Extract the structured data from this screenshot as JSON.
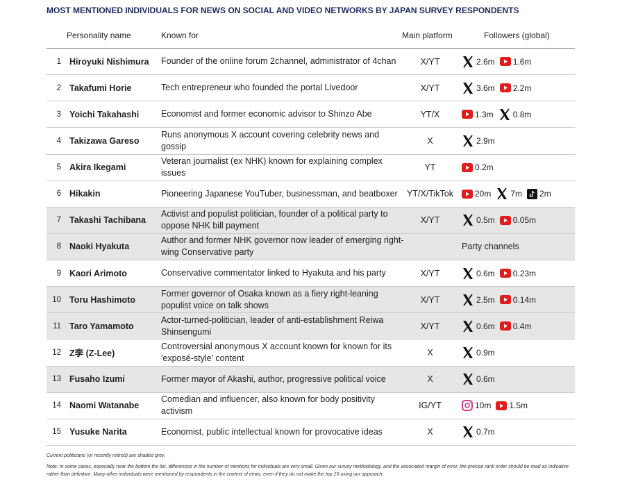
{
  "title": "MOST MENTIONED INDIVIDUALS FOR NEWS ON SOCIAL AND VIDEO NETWORKS BY JAPAN SURVEY RESPONDENTS",
  "table": {
    "headers": [
      "Personality name",
      "Known for",
      "Main platform",
      "Followers (global)"
    ],
    "rows": [
      {
        "rank": 1,
        "name": "Hiroyuki Nishimura",
        "known_for": "Founder of the online forum 2channel, administrator of 4chan",
        "platform": "X/YT",
        "shaded": false,
        "followers": [
          {
            "icon": "x",
            "value": "2.6m"
          },
          {
            "icon": "yt",
            "value": "1.6m"
          }
        ]
      },
      {
        "rank": 2,
        "name": "Takafumi Horie",
        "known_for": "Tech entrepreneur who founded the portal Livedoor",
        "platform": "X/YT",
        "shaded": false,
        "followers": [
          {
            "icon": "x",
            "value": "3.6m"
          },
          {
            "icon": "yt",
            "value": "2.2m"
          }
        ]
      },
      {
        "rank": 3,
        "name": "Yoichi Takahashi",
        "known_for": "Economist and former economic advisor to Shinzo Abe",
        "platform": "YT/X",
        "shaded": false,
        "followers": [
          {
            "icon": "yt",
            "value": "1.3m"
          },
          {
            "icon": "x",
            "value": "0.8m"
          }
        ]
      },
      {
        "rank": 4,
        "name": "Takizawa Gareso",
        "known_for": "Runs anonymous X account covering celebrity news and gossip",
        "platform": "X",
        "shaded": false,
        "followers": [
          {
            "icon": "x",
            "value": "2.9m"
          }
        ]
      },
      {
        "rank": 5,
        "name": "Akira Ikegami",
        "known_for": "Veteran journalist (ex NHK) known for explaining complex issues",
        "platform": "YT",
        "shaded": false,
        "followers": [
          {
            "icon": "yt",
            "value": "0.2m"
          }
        ]
      },
      {
        "rank": 6,
        "name": "Hikakin",
        "known_for": "Pioneering Japanese YouTuber, businessman, and beatboxer",
        "platform": "YT/X/TikTok",
        "shaded": false,
        "followers": [
          {
            "icon": "yt",
            "value": "20m"
          },
          {
            "icon": "x",
            "value": "7m"
          },
          {
            "icon": "tt",
            "value": "2m"
          }
        ]
      },
      {
        "rank": 7,
        "name": "Takashi Tachibana",
        "known_for": "Activist and populist politician, founder of a political party to oppose NHK bill payment",
        "platform": "X/YT",
        "shaded": true,
        "followers": [
          {
            "icon": "x",
            "value": "0.5m"
          },
          {
            "icon": "yt",
            "value": "0.05m"
          }
        ]
      },
      {
        "rank": 8,
        "name": "Naoki Hyakuta",
        "known_for": "Author and former NHK governor now leader of emerging right-wing Conservative party",
        "platform": "",
        "shaded": true,
        "followers_text": "Party channels",
        "followers": []
      },
      {
        "rank": 9,
        "name": "Kaori Arimoto",
        "known_for": "Conservative commentator linked to Hyakuta and his party",
        "platform": "X/YT",
        "shaded": false,
        "followers": [
          {
            "icon": "x",
            "value": "0.6m"
          },
          {
            "icon": "yt",
            "value": "0.23m"
          }
        ]
      },
      {
        "rank": 10,
        "name": "Toru Hashimoto",
        "known_for": "Former governor of Osaka known as a fiery right-leaning populist voice on talk shows",
        "platform": "X/YT",
        "shaded": true,
        "followers": [
          {
            "icon": "x",
            "value": "2.5m"
          },
          {
            "icon": "yt",
            "value": "0.14m"
          }
        ]
      },
      {
        "rank": 11,
        "name": "Taro Yamamoto",
        "known_for": "Actor-turned-politician, leader of anti-establishment Reiwa Shinsengumi",
        "platform": "X/YT",
        "shaded": true,
        "followers": [
          {
            "icon": "x",
            "value": "0.6m"
          },
          {
            "icon": "yt",
            "value": "0.4m"
          }
        ]
      },
      {
        "rank": 12,
        "name": "Z李 (Z-Lee)",
        "known_for": "Controversial anonymous X account known for known for its 'exposé-style' content",
        "platform": "X",
        "shaded": false,
        "followers": [
          {
            "icon": "x",
            "value": "0.9m"
          }
        ]
      },
      {
        "rank": 13,
        "name": "Fusaho Izumi",
        "known_for": "Former mayor of Akashi, author,  progressive political voice",
        "platform": "X",
        "shaded": true,
        "followers": [
          {
            "icon": "x",
            "value": "0.6m"
          }
        ]
      },
      {
        "rank": 14,
        "name": "Naomi Watanabe",
        "known_for": "Comedian and influencer, also known for body positivity activism",
        "platform": "IG/YT",
        "shaded": false,
        "followers": [
          {
            "icon": "ig",
            "value": "10m"
          },
          {
            "icon": "yt",
            "value": "1.5m"
          }
        ]
      },
      {
        "rank": 15,
        "name": "Yusuke Narita",
        "known_for": "Economist, public intellectual known for provocative ideas",
        "platform": "X",
        "shaded": false,
        "followers": [
          {
            "icon": "x",
            "value": "0.7m"
          }
        ]
      }
    ]
  },
  "footnotes": [
    "Current politicians (or recently retired) are shaded grey.",
    "Note: In some cases, especially near the bottom the list, differences in the number of mentions for individuals are very small. Given our survey methodology, and the associated margin of error, the precise rank order should be read as indicative rather than definitive. Many other individuals were mentioned by respondents in the context of news, even if they do not make the top 15 using our approach."
  ]
}
